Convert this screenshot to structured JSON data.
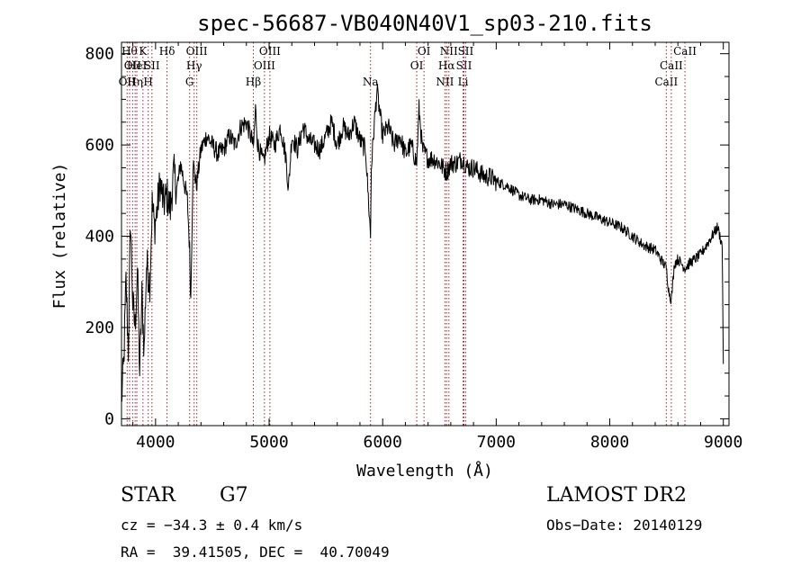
{
  "chart_data": {
    "type": "line",
    "title": "spec-56687-VB040N40V1_sp03-210.fits",
    "xlabel": "Wavelength (Å)",
    "ylabel": "Flux (relative)",
    "xlim": [
      3700,
      9050
    ],
    "ylim": [
      -15,
      825
    ],
    "x_ticks": [
      4000,
      5000,
      6000,
      7000,
      8000,
      9000
    ],
    "y_ticks": [
      0,
      200,
      400,
      600,
      800
    ],
    "grid": false,
    "line_color": "#000000",
    "marker_color": "#a0242c",
    "spectrum": {
      "x": [
        3700,
        3720,
        3740,
        3760,
        3780,
        3800,
        3820,
        3840,
        3860,
        3880,
        3900,
        3920,
        3950,
        3970,
        3990,
        4010,
        4040,
        4070,
        4100,
        4130,
        4160,
        4190,
        4220,
        4250,
        4280,
        4300,
        4310,
        4330,
        4360,
        4400,
        4450,
        4500,
        4550,
        4600,
        4650,
        4700,
        4750,
        4800,
        4850,
        4861,
        4880,
        4900,
        4950,
        5000,
        5050,
        5100,
        5150,
        5170,
        5200,
        5250,
        5300,
        5350,
        5400,
        5450,
        5500,
        5550,
        5600,
        5650,
        5700,
        5750,
        5800,
        5850,
        5893,
        5900,
        5930,
        5950,
        5970,
        6000,
        6050,
        6100,
        6150,
        6200,
        6250,
        6300,
        6320,
        6350,
        6400,
        6450,
        6500,
        6563,
        6600,
        6650,
        6700,
        6750,
        6800,
        6850,
        6900,
        6950,
        7000,
        7100,
        7200,
        7300,
        7400,
        7500,
        7600,
        7700,
        7800,
        7900,
        8000,
        8100,
        8200,
        8300,
        8400,
        8498,
        8520,
        8542,
        8570,
        8600,
        8662,
        8700,
        8750,
        8800,
        8850,
        8900,
        8950,
        8990,
        9000
      ],
      "y": [
        40,
        120,
        300,
        150,
        440,
        250,
        200,
        330,
        100,
        270,
        150,
        340,
        300,
        470,
        420,
        450,
        520,
        470,
        490,
        460,
        540,
        500,
        560,
        520,
        480,
        370,
        260,
        560,
        510,
        590,
        620,
        600,
        580,
        590,
        620,
        600,
        640,
        650,
        610,
        590,
        680,
        600,
        560,
        620,
        600,
        640,
        570,
        500,
        620,
        590,
        640,
        610,
        600,
        590,
        620,
        650,
        600,
        640,
        620,
        650,
        610,
        590,
        400,
        550,
        660,
        720,
        680,
        620,
        640,
        600,
        620,
        580,
        600,
        560,
        680,
        590,
        570,
        570,
        560,
        540,
        560,
        560,
        570,
        550,
        550,
        540,
        530,
        530,
        520,
        510,
        490,
        480,
        480,
        470,
        470,
        460,
        450,
        440,
        430,
        420,
        400,
        380,
        370,
        330,
        280,
        260,
        340,
        350,
        330,
        340,
        350,
        360,
        380,
        400,
        420,
        380,
        120
      ]
    },
    "line_markers": [
      {
        "x": 3750,
        "row": 2,
        "label": "OII"
      },
      {
        "x": 3771,
        "row": 0,
        "label": "Hθ"
      },
      {
        "x": 3798,
        "row": 1,
        "label": "OII"
      },
      {
        "x": 3820,
        "row": 2,
        "label": "Hη"
      },
      {
        "x": 3835,
        "row": 1,
        "label": "HeI"
      },
      {
        "x": 3889,
        "row": 0,
        "label": "K"
      },
      {
        "x": 3935,
        "row": 2,
        "label": "H"
      },
      {
        "x": 3968,
        "row": 1,
        "label": "SII"
      },
      {
        "x": 4101,
        "row": 0,
        "label": "Hδ"
      },
      {
        "x": 4300,
        "row": 2,
        "label": "G"
      },
      {
        "x": 4340,
        "row": 1,
        "label": "Hγ"
      },
      {
        "x": 4363,
        "row": 0,
        "label": "OIII"
      },
      {
        "x": 4861,
        "row": 2,
        "label": "Hβ"
      },
      {
        "x": 4959,
        "row": 1,
        "label": "OIII"
      },
      {
        "x": 5007,
        "row": 0,
        "label": "OIII"
      },
      {
        "x": 5893,
        "row": 2,
        "label": "Na"
      },
      {
        "x": 6300,
        "row": 1,
        "label": "OI"
      },
      {
        "x": 6364,
        "row": 0,
        "label": "OI"
      },
      {
        "x": 6548,
        "row": 2,
        "label": "NII"
      },
      {
        "x": 6563,
        "row": 1,
        "label": "Hα"
      },
      {
        "x": 6583,
        "row": 0,
        "label": "NII"
      },
      {
        "x": 6708,
        "row": 2,
        "label": "Li"
      },
      {
        "x": 6716,
        "row": 1,
        "label": "SII"
      },
      {
        "x": 6731,
        "row": 0,
        "label": "SII"
      },
      {
        "x": 8498,
        "row": 2,
        "label": "CaII"
      },
      {
        "x": 8542,
        "row": 1,
        "label": "CaII"
      },
      {
        "x": 8662,
        "row": 0,
        "label": "CaII"
      }
    ]
  },
  "info": {
    "class_label": "STAR",
    "subclass_label": "G7",
    "survey": "LAMOST DR2",
    "cz": "cz = −34.3 ± 0.4 km/s",
    "obs_date": "Obs−Date: 20140129",
    "coords": "RA =  39.41505, DEC =  40.70049"
  }
}
